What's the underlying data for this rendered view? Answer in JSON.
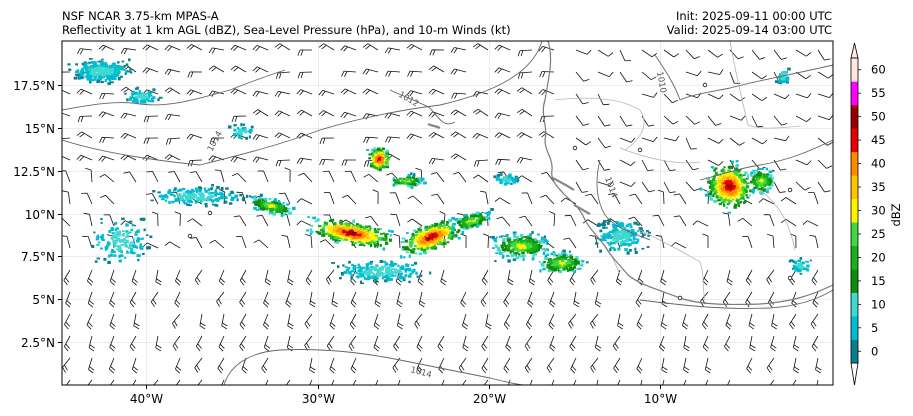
{
  "header": {
    "model_line": "NSF NCAR 3.75-km MPAS-A",
    "fields_line": "Reflectivity at 1 km AGL (dBZ), Sea-Level Pressure (hPa), and 10-m Winds (kt)",
    "init_line": "Init: 2025-09-11 00:00 UTC",
    "valid_line": "Valid: 2025-09-14 03:00 UTC"
  },
  "axes": {
    "lat_labels": [
      "17.5°N",
      "15°N",
      "12.5°N",
      "10°N",
      "7.5°N",
      "5°N",
      "2.5°N"
    ],
    "lon_labels": [
      "40°W",
      "30°W",
      "20°W",
      "10°W"
    ]
  },
  "isobars": {
    "labels": [
      "1014",
      "1012",
      "1014",
      "1010",
      "1014"
    ]
  },
  "colorbar": {
    "label": "dBZ",
    "ticks": [
      "0",
      "5",
      "10",
      "15",
      "20",
      "25",
      "30",
      "35",
      "40",
      "45",
      "50",
      "55",
      "60"
    ],
    "colors": [
      "#0b7f8f",
      "#00bcd1",
      "#3fd9cf",
      "#0e8c0e",
      "#19b019",
      "#3fd93f",
      "#fff300",
      "#ffc400",
      "#ff8a00",
      "#e60000",
      "#9b0000",
      "#ff00ff",
      "#ffe8de"
    ]
  }
}
